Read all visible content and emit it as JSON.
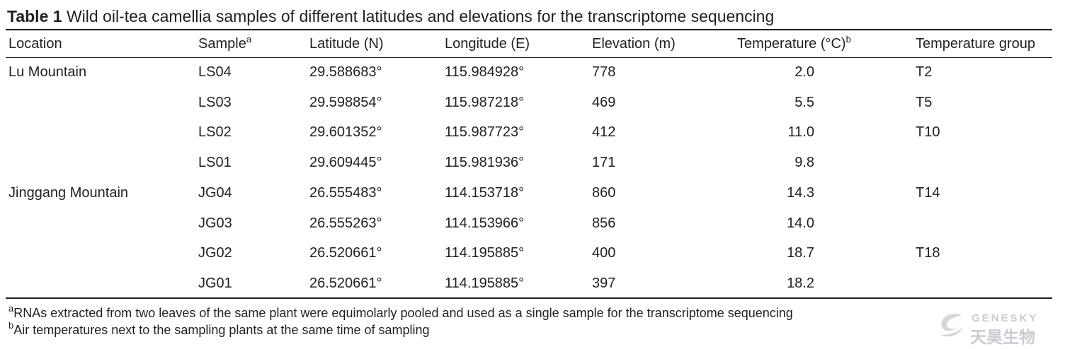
{
  "title": {
    "label": "Table 1",
    "text": "Wild oil-tea camellia samples of different latitudes and elevations for the transcriptome sequencing"
  },
  "table": {
    "header": [
      {
        "text": "Location"
      },
      {
        "text": "Sample",
        "sup": "a"
      },
      {
        "text": "Latitude (N)"
      },
      {
        "text": "Longitude (E)"
      },
      {
        "text": "Elevation (m)"
      },
      {
        "text": "Temperature (°C)",
        "sup": "b"
      },
      {
        "text": "Temperature group"
      }
    ],
    "groups": [
      {
        "location": "Lu Mountain",
        "rows": [
          {
            "sample": "LS04",
            "latitude": "29.588683°",
            "longitude": "115.984928°",
            "elevation": 778,
            "temperature": "2.0",
            "group": "T2"
          },
          {
            "sample": "LS03",
            "latitude": "29.598854°",
            "longitude": "115.987218°",
            "elevation": 469,
            "temperature": "5.5",
            "group": "T5"
          },
          {
            "sample": "LS02",
            "latitude": "29.601352°",
            "longitude": "115.987723°",
            "elevation": 412,
            "temperature": "11.0",
            "group": "T10"
          },
          {
            "sample": "LS01",
            "latitude": "29.609445°",
            "longitude": "115.981936°",
            "elevation": 171,
            "temperature": "9.8"
          }
        ]
      },
      {
        "location": "Jinggang Mountain",
        "rows": [
          {
            "sample": "JG04",
            "latitude": "26.555483°",
            "longitude": "114.153718°",
            "elevation": 860,
            "temperature": "14.3",
            "group": "T14"
          },
          {
            "sample": "JG03",
            "latitude": "26.555263°",
            "longitude": "114.153966°",
            "elevation": 856,
            "temperature": "14.0"
          },
          {
            "sample": "JG02",
            "latitude": "26.520661°",
            "longitude": "114.195885°",
            "elevation": 400,
            "temperature": "18.7",
            "group": "T18"
          },
          {
            "sample": "JG01",
            "latitude": "26.520661°",
            "longitude": "114.195885°",
            "elevation": 397,
            "temperature": "18.2"
          }
        ]
      }
    ]
  },
  "footnotes": [
    {
      "marker": "a",
      "text": "RNAs extracted from two leaves of the same plant were equimolarly pooled and used as a single sample for the transcriptome sequencing"
    },
    {
      "marker": "b",
      "text": "Air temperatures next to the sampling plants at the same time of sampling"
    }
  ],
  "watermark": {
    "brand": "GENESKY",
    "name": "天昊生物"
  }
}
